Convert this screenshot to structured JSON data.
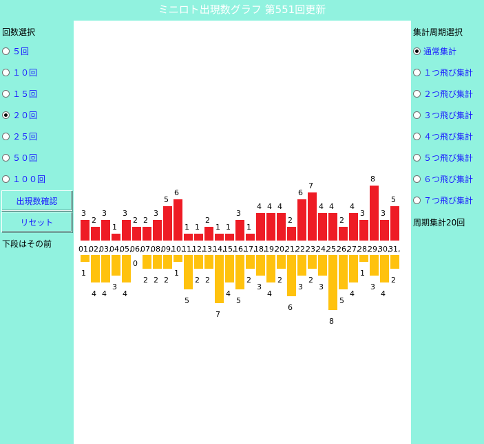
{
  "title": "ミニロト出現数グラフ 第551回更新",
  "left": {
    "section_label": "回数選択",
    "options": [
      {
        "label": "５回",
        "selected": false
      },
      {
        "label": "１０回",
        "selected": false
      },
      {
        "label": "１５回",
        "selected": false
      },
      {
        "label": "２０回",
        "selected": true
      },
      {
        "label": "２５回",
        "selected": false
      },
      {
        "label": "５０回",
        "selected": false
      },
      {
        "label": "１００回",
        "selected": false
      }
    ],
    "confirm_button": "出現数確認",
    "reset_button": "リセット",
    "note": "下段はその前"
  },
  "right": {
    "section_label": "集計周期選択",
    "options": [
      {
        "label": "通常集計",
        "selected": true
      },
      {
        "label": "１つ飛び集計",
        "selected": false
      },
      {
        "label": "２つ飛び集計",
        "selected": false
      },
      {
        "label": "３つ飛び集計",
        "selected": false
      },
      {
        "label": "４つ飛び集計",
        "selected": false
      },
      {
        "label": "５つ飛び集計",
        "selected": false
      },
      {
        "label": "６つ飛び集計",
        "selected": false
      },
      {
        "label": "７つ飛び集計",
        "selected": false
      }
    ],
    "period_note": "周期集計20回"
  },
  "chart_data": {
    "type": "bar",
    "categories": [
      "01",
      "02",
      "03",
      "04",
      "05",
      "06",
      "07",
      "08",
      "09",
      "10",
      "11",
      "12",
      "13",
      "14",
      "15",
      "16",
      "17",
      "18",
      "19",
      "20",
      "21",
      "22",
      "23",
      "24",
      "25",
      "26",
      "27",
      "28",
      "29",
      "30",
      "31"
    ],
    "series": [
      {
        "values": [
          3,
          2,
          3,
          1,
          3,
          2,
          2,
          3,
          5,
          6,
          1,
          1,
          2,
          1,
          1,
          3,
          1,
          4,
          4,
          4,
          2,
          6,
          7,
          4,
          4,
          2,
          4,
          3,
          8,
          3,
          5
        ],
        "color": "#ee1c25"
      },
      {
        "values": [
          1,
          4,
          4,
          3,
          4,
          0,
          2,
          2,
          2,
          1,
          5,
          2,
          2,
          7,
          4,
          5,
          2,
          3,
          4,
          2,
          6,
          3,
          2,
          3,
          8,
          5,
          4,
          1,
          3,
          4,
          2
        ],
        "color": "#ffc20e"
      }
    ]
  }
}
